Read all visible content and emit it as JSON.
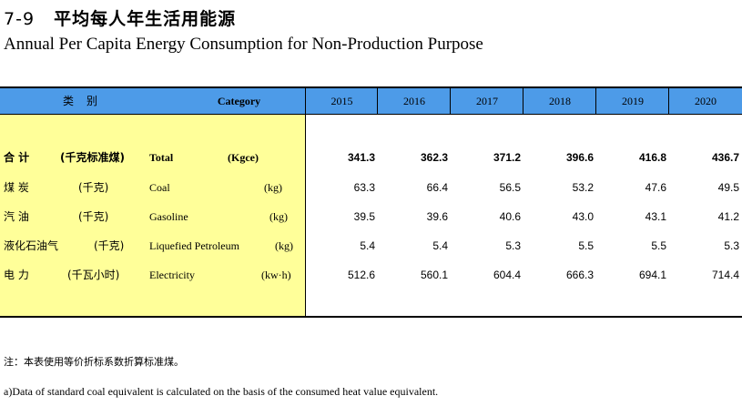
{
  "title": {
    "number": "7-9",
    "cn": "平均每人年生活用能源",
    "en": "Annual Per Capita Energy Consumption for Non-Production Purpose"
  },
  "header": {
    "category_cn": "类别",
    "category_en": "Category",
    "years": [
      "2015",
      "2016",
      "2017",
      "2018",
      "2019",
      "2020"
    ]
  },
  "rows": [
    {
      "cn": "合 计",
      "unit_cn": "(千克标准煤)",
      "en": "Total",
      "unit_en": "(Kgce)",
      "values": [
        "341.3",
        "362.3",
        "371.2",
        "396.6",
        "416.8",
        "436.7"
      ],
      "bold": true
    },
    {
      "cn": "煤 炭",
      "unit_cn": "(千克)",
      "en": "Coal",
      "unit_en": "(kg)",
      "values": [
        "63.3",
        "66.4",
        "56.5",
        "53.2",
        "47.6",
        "49.5"
      ],
      "bold": false
    },
    {
      "cn": "汽 油",
      "unit_cn": "(千克)",
      "en": "Gasoline",
      "unit_en": "(kg)",
      "values": [
        "39.5",
        "39.6",
        "40.6",
        "43.0",
        "43.1",
        "41.2"
      ],
      "bold": false
    },
    {
      "cn": "液化石油气",
      "unit_cn": "(千克)",
      "en": "Liquefied Petroleum",
      "unit_en": "(kg)",
      "values": [
        "5.4",
        "5.4",
        "5.3",
        "5.5",
        "5.5",
        "5.3"
      ],
      "bold": false
    },
    {
      "cn": "电 力",
      "unit_cn": "(千瓦小时)",
      "en": "Electricity",
      "unit_en": "(kw·h)",
      "values": [
        "512.6",
        "560.1",
        "604.4",
        "666.3",
        "694.1",
        "714.4"
      ],
      "bold": false
    }
  ],
  "notes": {
    "cn": "注：本表使用等价折标系数折算标准煤。",
    "en": "a)Data of standard coal equivalent is calculated on the basis of the consumed heat value equivalent."
  },
  "colors": {
    "header_bg": "#4d9be8",
    "category_bg": "#ffff99"
  }
}
